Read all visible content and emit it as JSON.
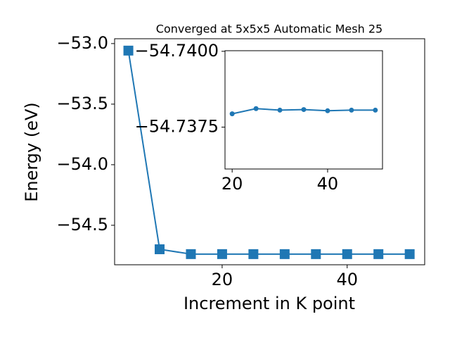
{
  "chart_data": [
    {
      "type": "line",
      "title": "Converged at 5x5x5 Automatic Mesh 25",
      "x_label": "Increment in K point",
      "y_label": "Energy (eV)",
      "x": [
        5,
        10,
        15,
        20,
        25,
        30,
        35,
        40,
        45,
        50
      ],
      "series": [
        {
          "name": "Energy",
          "color": "#1f77b4",
          "marker": "square",
          "values": [
            -53.058,
            -54.698,
            -54.738,
            -54.73794,
            -54.73811,
            -54.73806,
            -54.73808,
            -54.73804,
            -54.73806,
            -54.73806
          ]
        }
      ],
      "xlim": [
        2.8,
        52.4
      ],
      "ylim": [
        -54.826,
        -52.96
      ],
      "xticks": [
        20,
        40
      ],
      "yticks": [
        {
          "value": -54.5,
          "label": "−54.5"
        },
        {
          "value": -54.0,
          "label": "−54.0"
        },
        {
          "value": -53.5,
          "label": "−53.5"
        },
        {
          "value": -53.0,
          "label": "−53.0"
        }
      ]
    },
    {
      "type": "line",
      "x": [
        20,
        25,
        30,
        35,
        40,
        45,
        50
      ],
      "series": [
        {
          "name": "Energy",
          "color": "#1f77b4",
          "marker": "circle",
          "values": [
            -54.73794,
            -54.73811,
            -54.73806,
            -54.73808,
            -54.73804,
            -54.73806,
            -54.73806
          ]
        }
      ],
      "xlim": [
        18.5,
        51.5
      ],
      "ylim": [
        -54.73612,
        -54.74002
      ],
      "xticks": [
        20,
        40
      ],
      "yticks": [
        {
          "value": -54.7375,
          "label": "−54.7375"
        },
        {
          "value": -54.74,
          "label": "−54.7400"
        }
      ]
    }
  ]
}
